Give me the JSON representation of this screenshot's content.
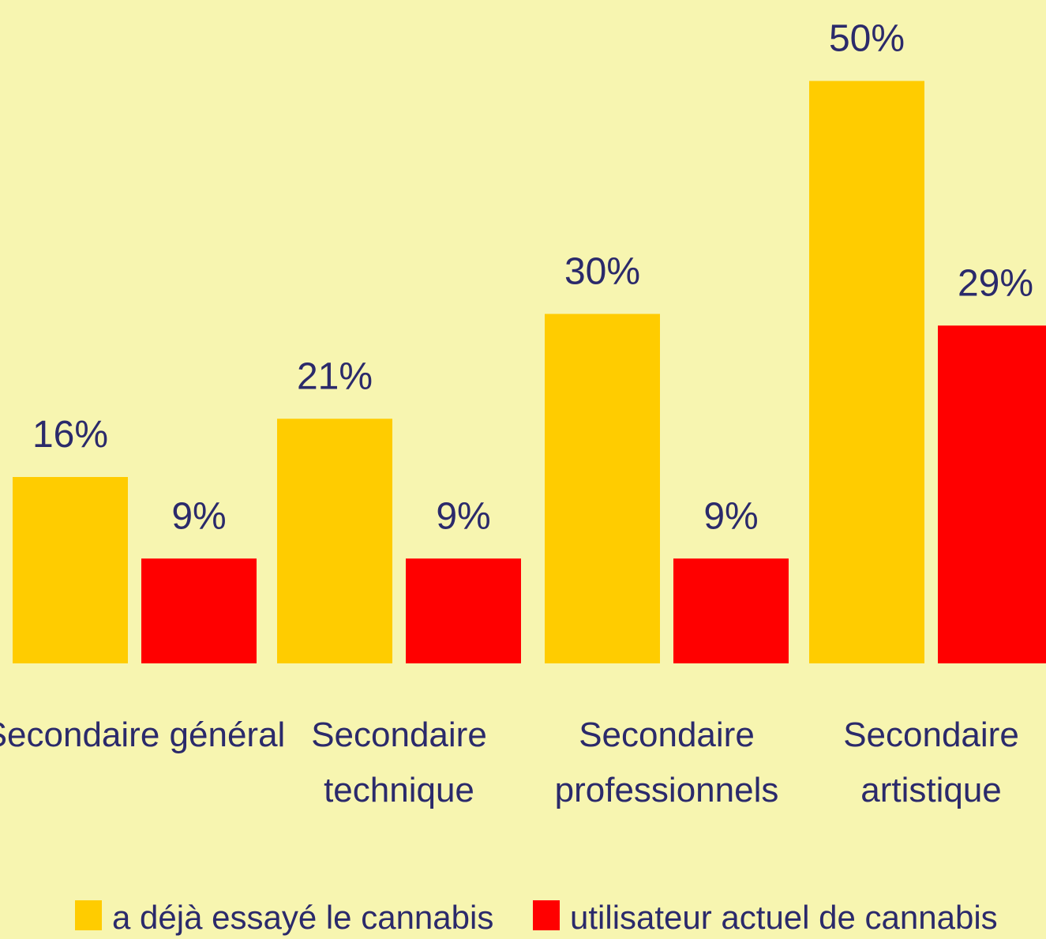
{
  "chart_data": {
    "type": "bar",
    "title": "",
    "xlabel": "",
    "ylabel": "",
    "ylim": [
      0,
      50
    ],
    "grid": false,
    "legend_position": "bottom",
    "categories": [
      [
        "Secondaire général"
      ],
      [
        "Secondaire",
        "technique"
      ],
      [
        "Secondaire",
        "professionnels"
      ],
      [
        "Secondaire",
        "artistique"
      ]
    ],
    "series": [
      {
        "name": "a déjà essayé le cannabis",
        "color": "#ffcc00",
        "values": [
          16,
          21,
          30,
          50
        ],
        "labels": [
          "16%",
          "21%",
          "30%",
          "50%"
        ]
      },
      {
        "name": "utilisateur actuel de cannabis",
        "color": "#ff0000",
        "values": [
          9,
          9,
          9,
          29
        ],
        "labels": [
          "9%",
          "9%",
          "9%",
          "29%"
        ]
      }
    ]
  }
}
